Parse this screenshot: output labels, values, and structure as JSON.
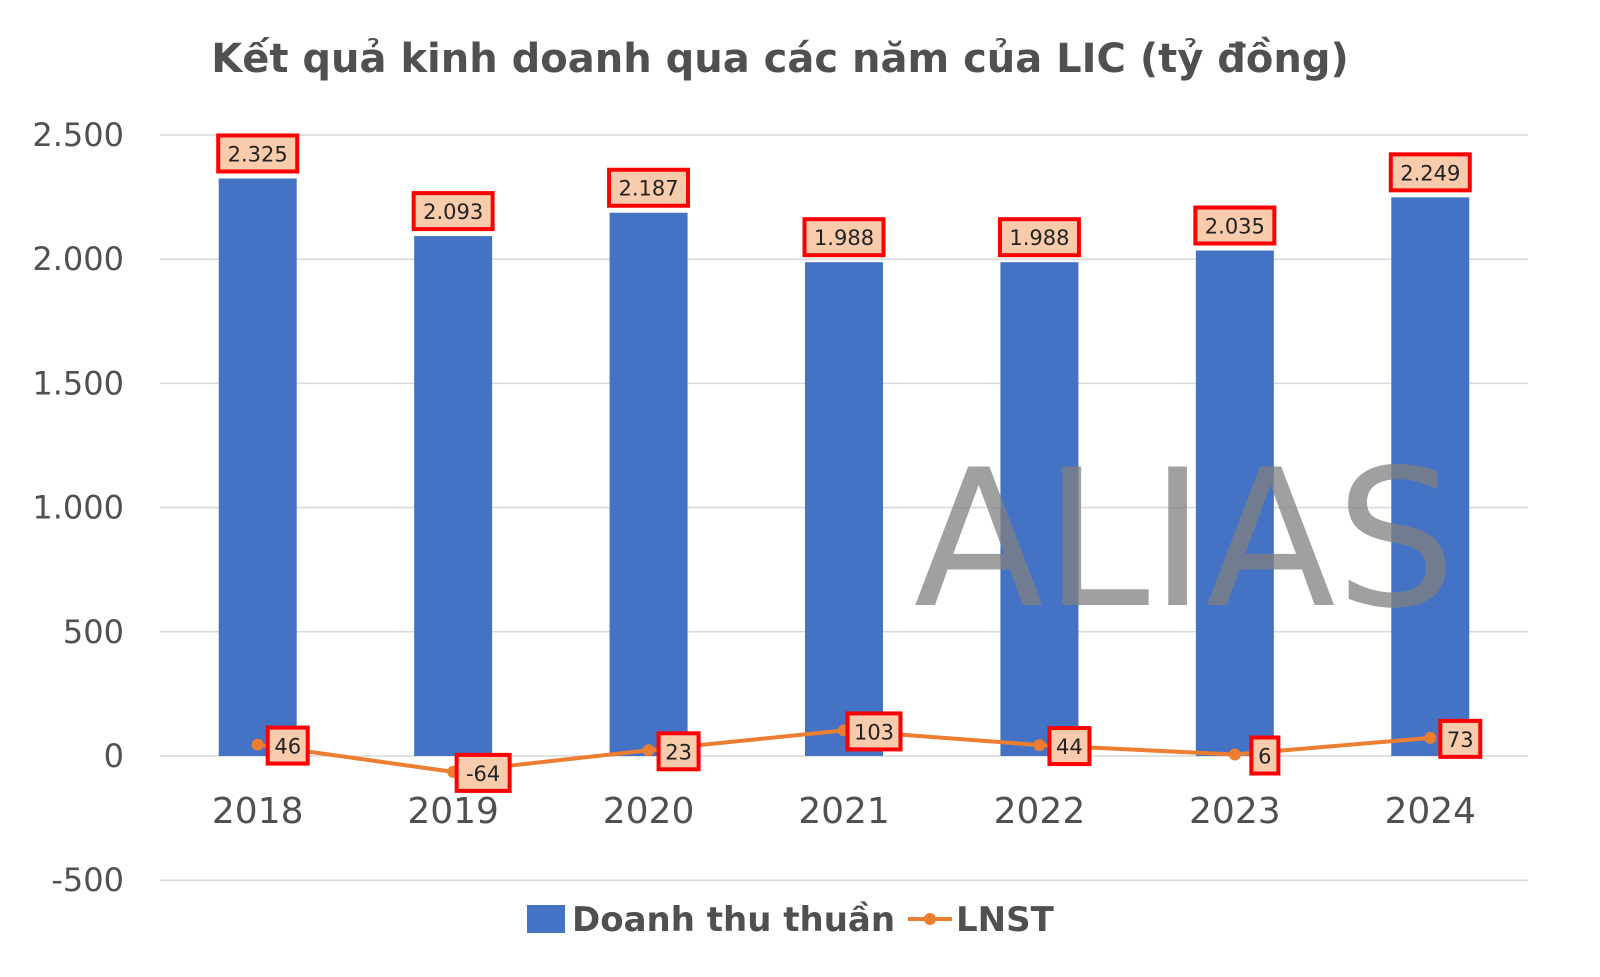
{
  "chart_data": {
    "type": "bar",
    "title": "Kết quả kinh doanh qua các năm của LIC (tỷ đồng)",
    "categories": [
      "2018",
      "2019",
      "2020",
      "2021",
      "2022",
      "2023",
      "2024"
    ],
    "ylim": [
      -500,
      2500
    ],
    "yticks": [
      -500,
      0,
      500,
      1000,
      1500,
      2000,
      2500
    ],
    "ytick_labels": [
      "-500",
      "0",
      "500",
      "1.000",
      "1.500",
      "2.000",
      "2.500"
    ],
    "grid": true,
    "legend_position": "bottom",
    "series": [
      {
        "name": "Doanh thu thuần",
        "type": "bar",
        "color": "#4472C4",
        "values": [
          2325,
          2093,
          2187,
          1988,
          1988,
          2035,
          2249
        ],
        "labels": [
          "2.325",
          "2.093",
          "2.187",
          "1.988",
          "1.988",
          "2.035",
          "2.249"
        ]
      },
      {
        "name": "LNST",
        "type": "line",
        "color": "#ED7D31",
        "values": [
          46,
          -64,
          23,
          103,
          44,
          6,
          73
        ],
        "labels": [
          "46",
          "-64",
          "23",
          "103",
          "44",
          "6",
          "73"
        ]
      }
    ],
    "label_box_fill": "#F8CBAD",
    "label_box_stroke": "#FF0000"
  },
  "watermark": "ALIAS"
}
